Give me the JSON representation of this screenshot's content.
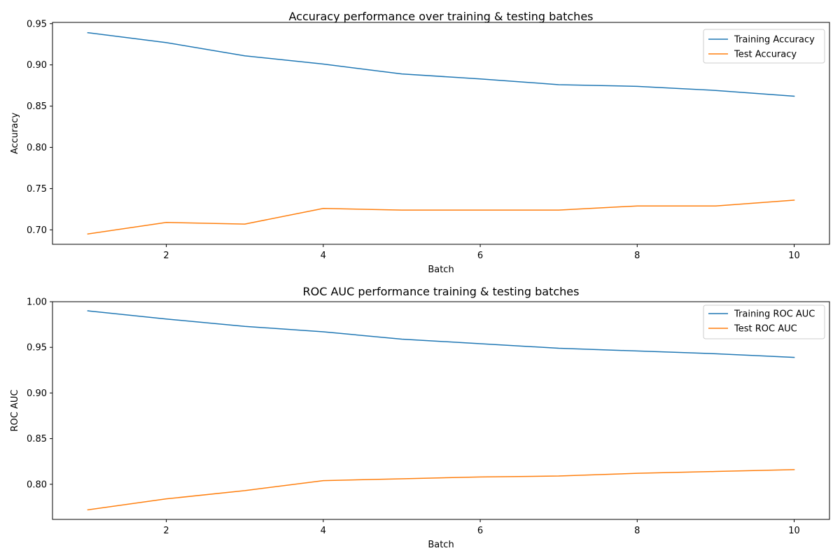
{
  "chart_data": [
    {
      "type": "line",
      "title": "Accuracy performance over training & testing batches",
      "xlabel": "Batch",
      "ylabel": "Accuracy",
      "x": [
        1,
        2,
        3,
        4,
        5,
        6,
        7,
        8,
        9,
        10
      ],
      "xlim": [
        0.55,
        10.45
      ],
      "ylim": [
        0.6825,
        0.9515
      ],
      "xticks": [
        2,
        4,
        6,
        8,
        10
      ],
      "xtick_labels": [
        "2",
        "4",
        "6",
        "8",
        "10"
      ],
      "yticks": [
        0.7,
        0.75,
        0.8,
        0.85,
        0.9,
        0.95
      ],
      "ytick_labels": [
        "0.70",
        "0.75",
        "0.80",
        "0.85",
        "0.90",
        "0.95"
      ],
      "grid": false,
      "legend_position": "upper right",
      "series": [
        {
          "name": "Training Accuracy",
          "color": "#1f77b4",
          "values": [
            0.939,
            0.927,
            0.911,
            0.901,
            0.889,
            0.883,
            0.876,
            0.874,
            0.869,
            0.862
          ]
        },
        {
          "name": "Test Accuracy",
          "color": "#ff7f0e",
          "values": [
            0.695,
            0.709,
            0.707,
            0.726,
            0.724,
            0.724,
            0.724,
            0.729,
            0.729,
            0.736
          ]
        }
      ]
    },
    {
      "type": "line",
      "title": "ROC AUC performance training & testing batches",
      "xlabel": "Batch",
      "ylabel": "ROC AUC",
      "x": [
        1,
        2,
        3,
        4,
        5,
        6,
        7,
        8,
        9,
        10
      ],
      "xlim": [
        0.55,
        10.45
      ],
      "ylim": [
        0.7615,
        1.0
      ],
      "xticks": [
        2,
        4,
        6,
        8,
        10
      ],
      "xtick_labels": [
        "2",
        "4",
        "6",
        "8",
        "10"
      ],
      "yticks": [
        0.8,
        0.85,
        0.9,
        0.95,
        1.0
      ],
      "ytick_labels": [
        "0.80",
        "0.85",
        "0.90",
        "0.95",
        "1.00"
      ],
      "grid": false,
      "legend_position": "upper right",
      "series": [
        {
          "name": "Training ROC AUC",
          "color": "#1f77b4",
          "values": [
            0.99,
            0.981,
            0.973,
            0.967,
            0.959,
            0.954,
            0.949,
            0.946,
            0.943,
            0.939
          ]
        },
        {
          "name": "Test ROC AUC",
          "color": "#ff7f0e",
          "values": [
            0.772,
            0.784,
            0.793,
            0.804,
            0.806,
            0.808,
            0.809,
            0.812,
            0.814,
            0.816
          ]
        }
      ]
    }
  ]
}
